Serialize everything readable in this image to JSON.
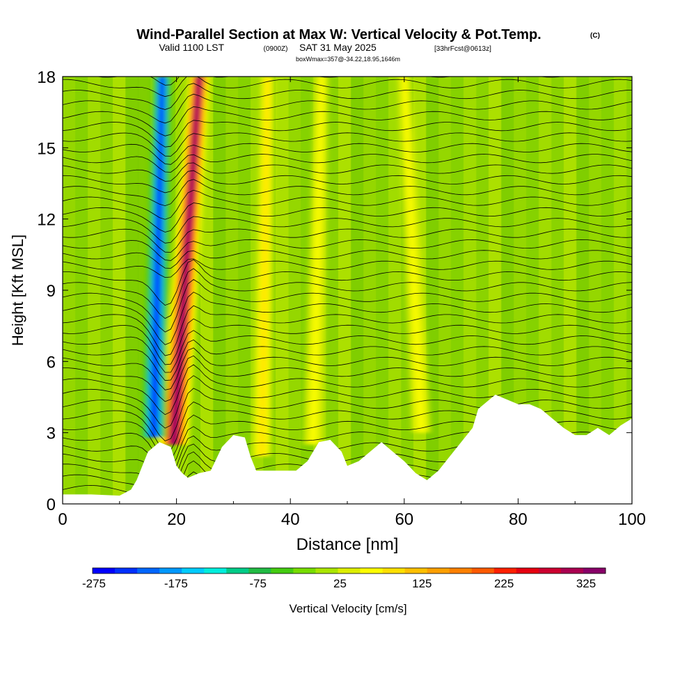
{
  "header": {
    "title": "Wind-Parallel Section at Max W: Vertical Velocity & Pot.Temp.",
    "copyright": "(C)",
    "valid_prefix": "Valid 1100 LST",
    "valid_utc": "(0900Z)",
    "valid_date": "SAT 31 May 2025",
    "forecast": "[33hrFcst@0613z]",
    "box_info": "boxWmax=357@-34.22,18.95,1646m"
  },
  "chart_data": {
    "type": "heatmap",
    "title": "Wind-Parallel Section at Max W: Vertical Velocity & Pot.Temp.",
    "xlabel": "Distance [nm]",
    "ylabel": "Height [Kft MSL]",
    "xlim": [
      0,
      100
    ],
    "ylim": [
      0,
      18
    ],
    "x_ticks": [
      0,
      20,
      40,
      60,
      80,
      100
    ],
    "y_ticks": [
      0,
      3,
      6,
      9,
      12,
      15,
      18
    ],
    "colorbar": {
      "label": "Vertical Velocity [cm/s]",
      "tick_labels": [
        "-275",
        "-175",
        "-75",
        "25",
        "125",
        "225",
        "325"
      ],
      "colors": [
        "#0000ff",
        "#0030ff",
        "#0066ff",
        "#0099ff",
        "#00ccff",
        "#00eedd",
        "#00cc88",
        "#22bb44",
        "#44cc11",
        "#77dd00",
        "#aae600",
        "#ddee00",
        "#ffff00",
        "#ffe000",
        "#ffc000",
        "#ffa000",
        "#ff8000",
        "#ff5a00",
        "#ff2000",
        "#e60010",
        "#cc0030",
        "#aa0050",
        "#880068"
      ]
    },
    "terrain_kft": [
      [
        0,
        0.4
      ],
      [
        5,
        0.4
      ],
      [
        10,
        0.35
      ],
      [
        12,
        0.6
      ],
      [
        13,
        1.0
      ],
      [
        14,
        1.6
      ],
      [
        15,
        2.2
      ],
      [
        17,
        2.6
      ],
      [
        19,
        2.4
      ],
      [
        20,
        1.6
      ],
      [
        21,
        1.3
      ],
      [
        22,
        1.1
      ],
      [
        24,
        1.3
      ],
      [
        26,
        1.4
      ],
      [
        28,
        2.4
      ],
      [
        30,
        2.9
      ],
      [
        32,
        2.8
      ],
      [
        33,
        2.0
      ],
      [
        34,
        1.4
      ],
      [
        38,
        1.4
      ],
      [
        41,
        1.4
      ],
      [
        43,
        1.8
      ],
      [
        45,
        2.6
      ],
      [
        47,
        2.7
      ],
      [
        49,
        2.2
      ],
      [
        50,
        1.6
      ],
      [
        52,
        1.8
      ],
      [
        54,
        2.2
      ],
      [
        56,
        2.6
      ],
      [
        58,
        2.2
      ],
      [
        60,
        1.8
      ],
      [
        62,
        1.3
      ],
      [
        64,
        1.0
      ],
      [
        66,
        1.4
      ],
      [
        68,
        2.0
      ],
      [
        70,
        2.6
      ],
      [
        72,
        3.2
      ],
      [
        73,
        4.0
      ],
      [
        74,
        4.2
      ],
      [
        76,
        4.6
      ],
      [
        78,
        4.4
      ],
      [
        80,
        4.2
      ],
      [
        82,
        4.2
      ],
      [
        84,
        4.0
      ],
      [
        86,
        3.6
      ],
      [
        88,
        3.2
      ],
      [
        90,
        2.9
      ],
      [
        92,
        2.9
      ],
      [
        94,
        3.2
      ],
      [
        96,
        2.9
      ],
      [
        98,
        3.3
      ],
      [
        100,
        3.6
      ]
    ],
    "updraft_bands": [
      {
        "x_base": 19.5,
        "x_top": 24,
        "y_bottom": 2.5,
        "y_top": 18,
        "peak_cm_s": 357
      },
      {
        "x_base": 35,
        "x_top": 36,
        "y_bottom": 2.0,
        "y_top": 18,
        "peak_cm_s": 90
      },
      {
        "x_base": 44,
        "x_top": 45.5,
        "y_bottom": 2.5,
        "y_top": 18,
        "peak_cm_s": 60
      },
      {
        "x_base": 63,
        "x_top": 60,
        "y_bottom": 3.0,
        "y_top": 18,
        "peak_cm_s": 60
      }
    ],
    "downdraft_bands": [
      {
        "x_base": 16,
        "x_top": 17.5,
        "y_bottom": 2.8,
        "y_top": 18,
        "peak_cm_s": -275
      }
    ],
    "theta_isolines_count": 40,
    "theta_contour_color": "#000000"
  },
  "colors": {
    "background": "#ffffff",
    "axis": "#000000",
    "field_base": "#8fd400"
  }
}
